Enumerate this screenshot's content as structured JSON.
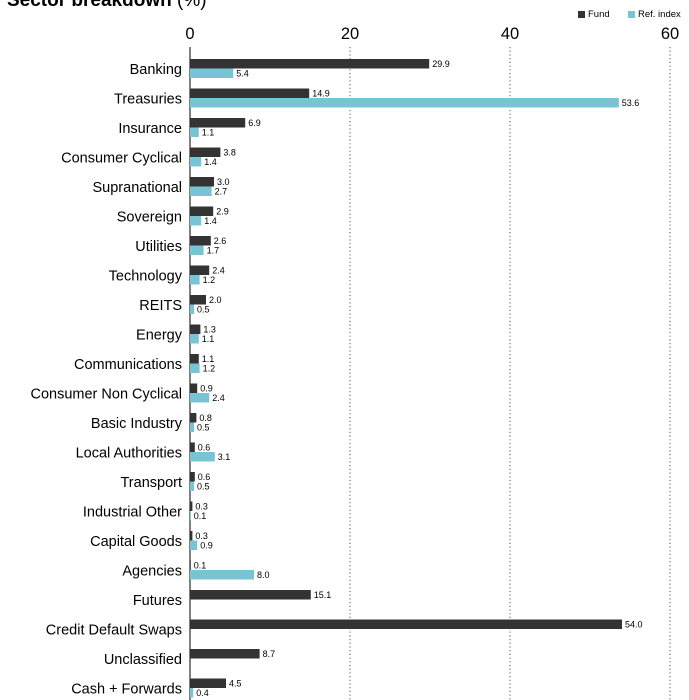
{
  "chart_data": {
    "type": "bar",
    "orientation": "horizontal",
    "title": "Sector breakdown",
    "title_unit": "(%)",
    "xlim": [
      0,
      60
    ],
    "x_ticks": [
      0,
      20,
      40,
      60
    ],
    "x_tick_labels": [
      "0",
      "20",
      "40",
      "60"
    ],
    "grid": "vertical dotted",
    "legend_position": "top-right",
    "categories": [
      "Banking",
      "Treasuries",
      "Insurance",
      "Consumer Cyclical",
      "Supranational",
      "Sovereign",
      "Utilities",
      "Technology",
      "REITS",
      "Energy",
      "Communications",
      "Consumer Non Cyclical",
      "Basic Industry",
      "Local Authorities",
      "Transport",
      "Industrial Other",
      "Capital Goods",
      "Agencies",
      "Futures",
      "Credit Default Swaps",
      "Unclassified",
      "Cash + Forwards"
    ],
    "series": [
      {
        "name": "Fund",
        "color": "#333333",
        "values": [
          29.9,
          14.9,
          6.9,
          3.8,
          3.0,
          2.9,
          2.6,
          2.4,
          2.0,
          1.3,
          1.1,
          0.9,
          0.8,
          0.6,
          0.6,
          0.3,
          0.3,
          0.1,
          15.1,
          54.0,
          8.7,
          4.5
        ],
        "labels": [
          "29.9",
          "14.9",
          "6.9",
          "3.8",
          "3.0",
          "2.9",
          "2.6",
          "2.4",
          "2.0",
          "1.3",
          "1.1",
          "0.9",
          "0.8",
          "0.6",
          "0.6",
          "0.3",
          "0.3",
          "0.1",
          "15.1",
          "54.0",
          "8.7",
          "4.5"
        ]
      },
      {
        "name": "Ref. index",
        "color": "#78c4d4",
        "values": [
          5.4,
          53.6,
          1.1,
          1.4,
          2.7,
          1.4,
          1.7,
          1.2,
          0.5,
          1.1,
          1.2,
          2.4,
          0.5,
          3.1,
          0.5,
          0.1,
          0.9,
          8.0,
          null,
          null,
          null,
          0.4
        ],
        "labels": [
          "5.4",
          "53.6",
          "1.1",
          "1.4",
          "2.7",
          "1.4",
          "1.7",
          "1.2",
          "0.5",
          "1.1",
          "1.2",
          "2.4",
          "0.5",
          "3.1",
          "0.5",
          "0.1",
          "0.9",
          "8.0",
          null,
          null,
          null,
          "0.4"
        ]
      }
    ]
  }
}
